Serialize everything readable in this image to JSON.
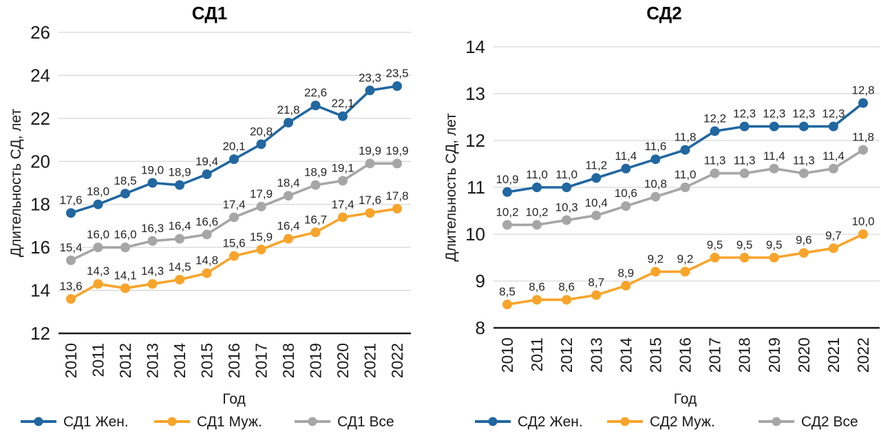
{
  "figure": {
    "background": "#ffffff",
    "text_color": "#1a1a1a",
    "grid_color": "#d6d6d6",
    "axis_color": "#1a1a1a"
  },
  "chart_data": [
    {
      "type": "line",
      "title": "СД1",
      "xlabel": "Год",
      "ylabel": "Длительность СД, лет",
      "decimal_separator": ",",
      "grid": true,
      "legend_position": "bottom",
      "x": [
        "2010",
        "2011",
        "2012",
        "2013",
        "2014",
        "2015",
        "2016",
        "2017",
        "2018",
        "2019",
        "2020",
        "2021",
        "2022"
      ],
      "ylim": [
        12,
        26
      ],
      "ytick_step": 2,
      "series": [
        {
          "name": "СД1 Жен.",
          "color": "#2167a0",
          "marker": "circle",
          "values": [
            17.6,
            18.0,
            18.5,
            19.0,
            18.9,
            19.4,
            20.1,
            20.8,
            21.8,
            22.6,
            22.1,
            23.3,
            23.5
          ]
        },
        {
          "name": "СД1 Муж.",
          "color": "#f7a42b",
          "marker": "circle",
          "values": [
            13.6,
            14.3,
            14.1,
            14.3,
            14.5,
            14.8,
            15.6,
            15.9,
            16.4,
            16.7,
            17.4,
            17.6,
            17.8
          ]
        },
        {
          "name": "СД1 Все",
          "color": "#a6a6a6",
          "marker": "circle",
          "values": [
            15.4,
            16.0,
            16.0,
            16.3,
            16.4,
            16.6,
            17.4,
            17.9,
            18.4,
            18.9,
            19.1,
            19.9,
            19.9
          ]
        }
      ]
    },
    {
      "type": "line",
      "title": "СД2",
      "xlabel": "Год",
      "ylabel": "Длительность СД, лет",
      "decimal_separator": ",",
      "grid": true,
      "legend_position": "bottom",
      "x": [
        "2010",
        "2011",
        "2012",
        "2013",
        "2014",
        "2015",
        "2016",
        "2017",
        "2018",
        "2019",
        "2020",
        "2021",
        "2022"
      ],
      "ylim": [
        8,
        14
      ],
      "ytick_step": 1,
      "series": [
        {
          "name": "СД2 Жен.",
          "color": "#2167a0",
          "marker": "circle",
          "values": [
            10.9,
            11.0,
            11.0,
            11.2,
            11.4,
            11.6,
            11.8,
            12.2,
            12.3,
            12.3,
            12.3,
            12.3,
            12.8
          ]
        },
        {
          "name": "СД2 Муж.",
          "color": "#f7a42b",
          "marker": "circle",
          "values": [
            8.5,
            8.6,
            8.6,
            8.7,
            8.9,
            9.2,
            9.2,
            9.5,
            9.5,
            9.5,
            9.6,
            9.7,
            10.0
          ]
        },
        {
          "name": "СД2 Все",
          "color": "#a6a6a6",
          "marker": "circle",
          "values": [
            10.2,
            10.2,
            10.3,
            10.4,
            10.6,
            10.8,
            11.0,
            11.3,
            11.3,
            11.4,
            11.3,
            11.4,
            11.8
          ]
        }
      ]
    }
  ]
}
